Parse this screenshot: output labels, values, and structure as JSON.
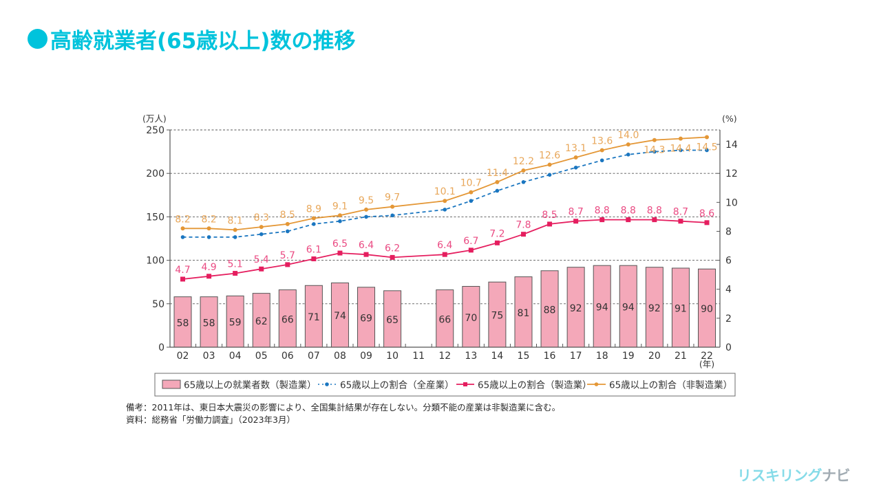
{
  "page": {
    "title": "高齢就業者(65歳以上)数の推移",
    "title_color": "#00c3dc",
    "notes": [
      "備考：2011年は、東日本大震災の影響により、全国集計結果が存在しない。分類不能の産業は非製造業に含む。",
      "資料：総務省「労働力調査」（2023年3月）"
    ],
    "logo": {
      "part1": "リスキリング",
      "part2": "ナビ"
    }
  },
  "chart_data": {
    "type": "bar+line",
    "title": "高齢就業者(65歳以上)数の推移",
    "xlabel": "(年)",
    "categories": [
      "02",
      "03",
      "04",
      "05",
      "06",
      "07",
      "08",
      "09",
      "10",
      "11",
      "12",
      "13",
      "14",
      "15",
      "16",
      "17",
      "18",
      "19",
      "20",
      "21",
      "22"
    ],
    "y_left": {
      "label": "(万人)",
      "range": [
        0,
        250
      ],
      "ticks": [
        "0",
        "50",
        "100",
        "150",
        "200",
        "250"
      ]
    },
    "y_right": {
      "label": "(%)",
      "range": [
        0,
        15
      ],
      "ticks": [
        "0",
        "2",
        "4",
        "6",
        "8",
        "10",
        "12",
        "14"
      ]
    },
    "grid": "horizontal dashed at left-axis ticks",
    "legend_position": "bottom",
    "series": [
      {
        "name": "65歳以上の就業者数（製造業）",
        "type": "bar",
        "axis": "left",
        "color": "#f4a8b9",
        "values": [
          58,
          58,
          59,
          62,
          66,
          71,
          74,
          69,
          65,
          null,
          66,
          70,
          75,
          81,
          88,
          92,
          94,
          94,
          92,
          91,
          90
        ],
        "value_labels": [
          "58",
          "58",
          "59",
          "62",
          "66",
          "71",
          "74",
          "69",
          "65",
          null,
          "66",
          "70",
          "75",
          "81",
          "88",
          "92",
          "94",
          "94",
          "92",
          "91",
          "90"
        ]
      },
      {
        "name": "65歳以上の割合（全産業）",
        "type": "line",
        "style": "dashed",
        "marker": "circle",
        "axis": "right",
        "color": "#1a76c0",
        "values": [
          7.6,
          7.6,
          7.6,
          7.8,
          8.0,
          8.5,
          8.7,
          9.0,
          9.1,
          null,
          9.5,
          10.1,
          10.8,
          11.4,
          11.9,
          12.4,
          12.9,
          13.3,
          13.5,
          13.6,
          13.6
        ],
        "value_labels": null
      },
      {
        "name": "65歳以上の割合（製造業）",
        "type": "line",
        "style": "solid",
        "marker": "square",
        "axis": "right",
        "color": "#e51e5f",
        "label_color": "#ea4a82",
        "values": [
          4.7,
          4.9,
          5.1,
          5.4,
          5.7,
          6.1,
          6.5,
          6.4,
          6.2,
          null,
          6.4,
          6.7,
          7.2,
          7.8,
          8.5,
          8.7,
          8.8,
          8.8,
          8.8,
          8.7,
          8.6
        ],
        "value_labels": [
          "4.7",
          "4.9",
          "5.1",
          "5.4",
          "5.7",
          "6.1",
          "6.5",
          "6.4",
          "6.2",
          null,
          "6.4",
          "6.7",
          "7.2",
          "7.8",
          "8.5",
          "8.7",
          "8.8",
          "8.8",
          "8.8",
          "8.7",
          "8.6"
        ]
      },
      {
        "name": "65歳以上の割合（非製造業）",
        "type": "line",
        "style": "solid",
        "marker": "circle",
        "axis": "right",
        "color": "#e49736",
        "label_color": "#e8a75a",
        "values": [
          8.2,
          8.2,
          8.1,
          8.3,
          8.5,
          8.9,
          9.1,
          9.5,
          9.7,
          null,
          10.1,
          10.7,
          11.4,
          12.2,
          12.6,
          13.1,
          13.6,
          14.0,
          14.3,
          14.4,
          14.5
        ],
        "value_labels": [
          "8.2",
          "8.2",
          "8.1",
          "8.3",
          "8.5",
          "8.9",
          "9.1",
          "9.5",
          "9.7",
          null,
          "10.1",
          "10.7",
          "11.4",
          "12.2",
          "12.6",
          "13.1",
          "13.6",
          "14.0",
          "14.3",
          "14.4",
          "14.5"
        ]
      }
    ]
  }
}
